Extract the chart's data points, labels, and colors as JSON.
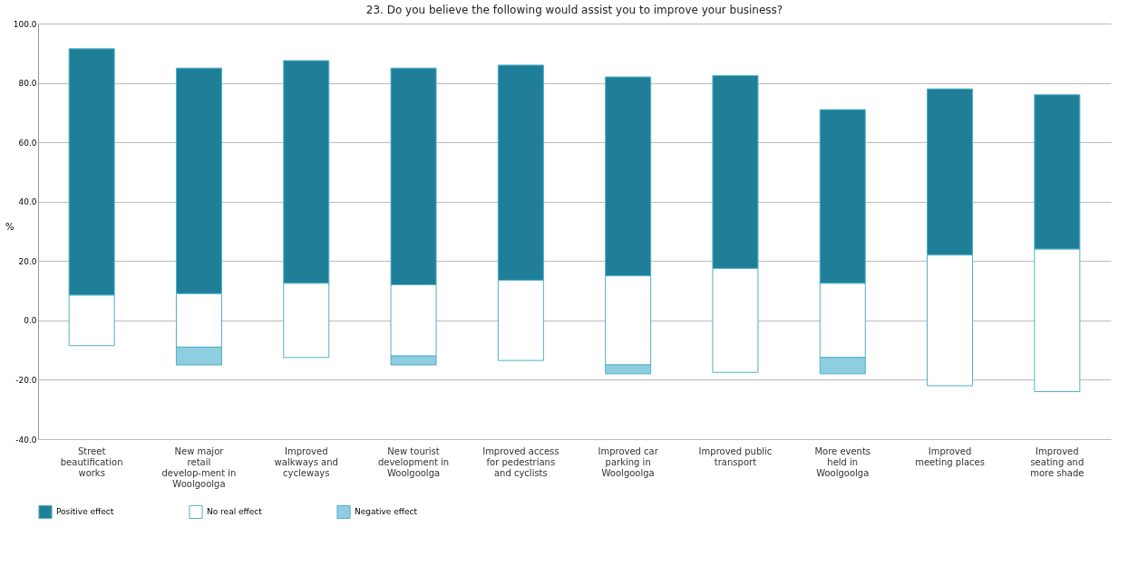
{
  "chart_data": {
    "type": "bar",
    "title": "23. Do you believe the following would assist you to improve your business?",
    "ylabel": "%",
    "categories": [
      "Street beautification works",
      "New major retail develop-ment in Woolgoolga",
      "Improved walkways and cycleways",
      "New tourist development in Woolgoolga",
      "Improved access for pedestrians and cyclists",
      "Improved car parking in Woolgoolga",
      "Improved public transport",
      "More events held in Woolgoolga",
      "Improved meeting places",
      "Improved seating and more shade"
    ],
    "series": [
      {
        "name": "Positive effect",
        "color": "#1f7f98",
        "values": [
          83,
          76,
          75,
          73,
          72.5,
          67,
          65,
          58.5,
          56,
          52
        ],
        "base": [
          8.5,
          9,
          12.5,
          12,
          13.5,
          15,
          17.5,
          12.5,
          22,
          24
        ]
      },
      {
        "name": "No real effect",
        "color": "#ffffff",
        "values": [
          17,
          18,
          25,
          24,
          27,
          30,
          35,
          25,
          44,
          48
        ],
        "base": [
          -8.5,
          -9,
          -12.5,
          -12,
          -13.5,
          -15,
          -17.5,
          -12.5,
          -22,
          -24
        ]
      },
      {
        "name": "Negative effect",
        "color": "#8fcde0",
        "values": [
          null,
          6,
          null,
          3,
          null,
          3,
          null,
          5.5,
          null,
          null
        ],
        "base": [
          null,
          -15,
          null,
          -15,
          null,
          -18,
          null,
          -18,
          null,
          null
        ]
      }
    ],
    "ylim": [
      -40,
      100
    ],
    "yticks": [
      {
        "value": -40,
        "label": "-40.0"
      },
      {
        "value": -20,
        "label": "-20.0"
      },
      {
        "value": 0,
        "label": "0.0"
      },
      {
        "value": 20,
        "label": "20.0"
      },
      {
        "value": 40,
        "label": "40.0"
      },
      {
        "value": 60,
        "label": "60.0"
      },
      {
        "value": 80,
        "label": "80.0"
      },
      {
        "value": 100,
        "label": "100.0"
      }
    ],
    "grid": "y",
    "legend": "bottom"
  }
}
